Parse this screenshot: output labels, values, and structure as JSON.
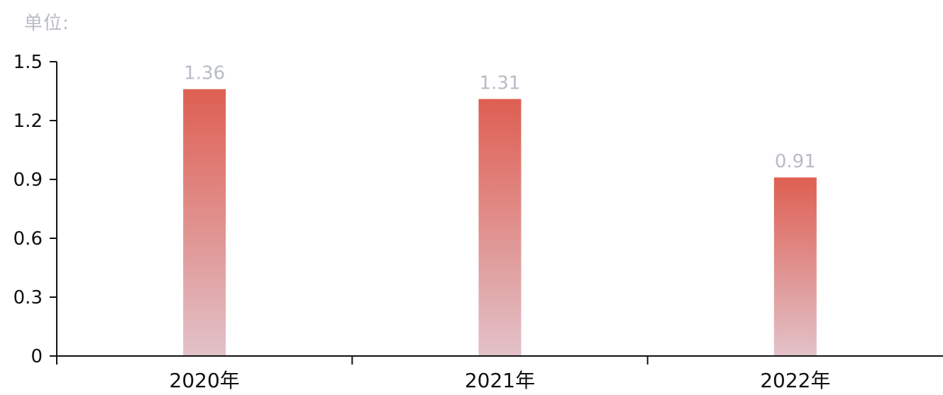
{
  "unit_label": "单位:",
  "colors": {
    "axis": "#111111",
    "tick_label": "#111111",
    "data_label": "#b9bcc6",
    "bar_top": "#de5f52",
    "bar_bottom": "#e2c2c9",
    "unit_label": "#b9bcc6"
  },
  "chart_data": {
    "type": "bar",
    "title": "",
    "xlabel": "",
    "ylabel": "",
    "categories": [
      "2020年",
      "2021年",
      "2022年"
    ],
    "values": [
      1.36,
      1.31,
      0.91
    ],
    "data_labels": [
      "1.36",
      "1.31",
      "0.91"
    ],
    "ylim": [
      0,
      1.5
    ],
    "yticks": [
      0,
      0.3,
      0.6,
      0.9,
      1.2,
      1.5
    ],
    "ytick_labels": [
      "0",
      "0.3",
      "0.6",
      "0.9",
      "1.2",
      "1.5"
    ],
    "grid": false,
    "legend": "none"
  }
}
